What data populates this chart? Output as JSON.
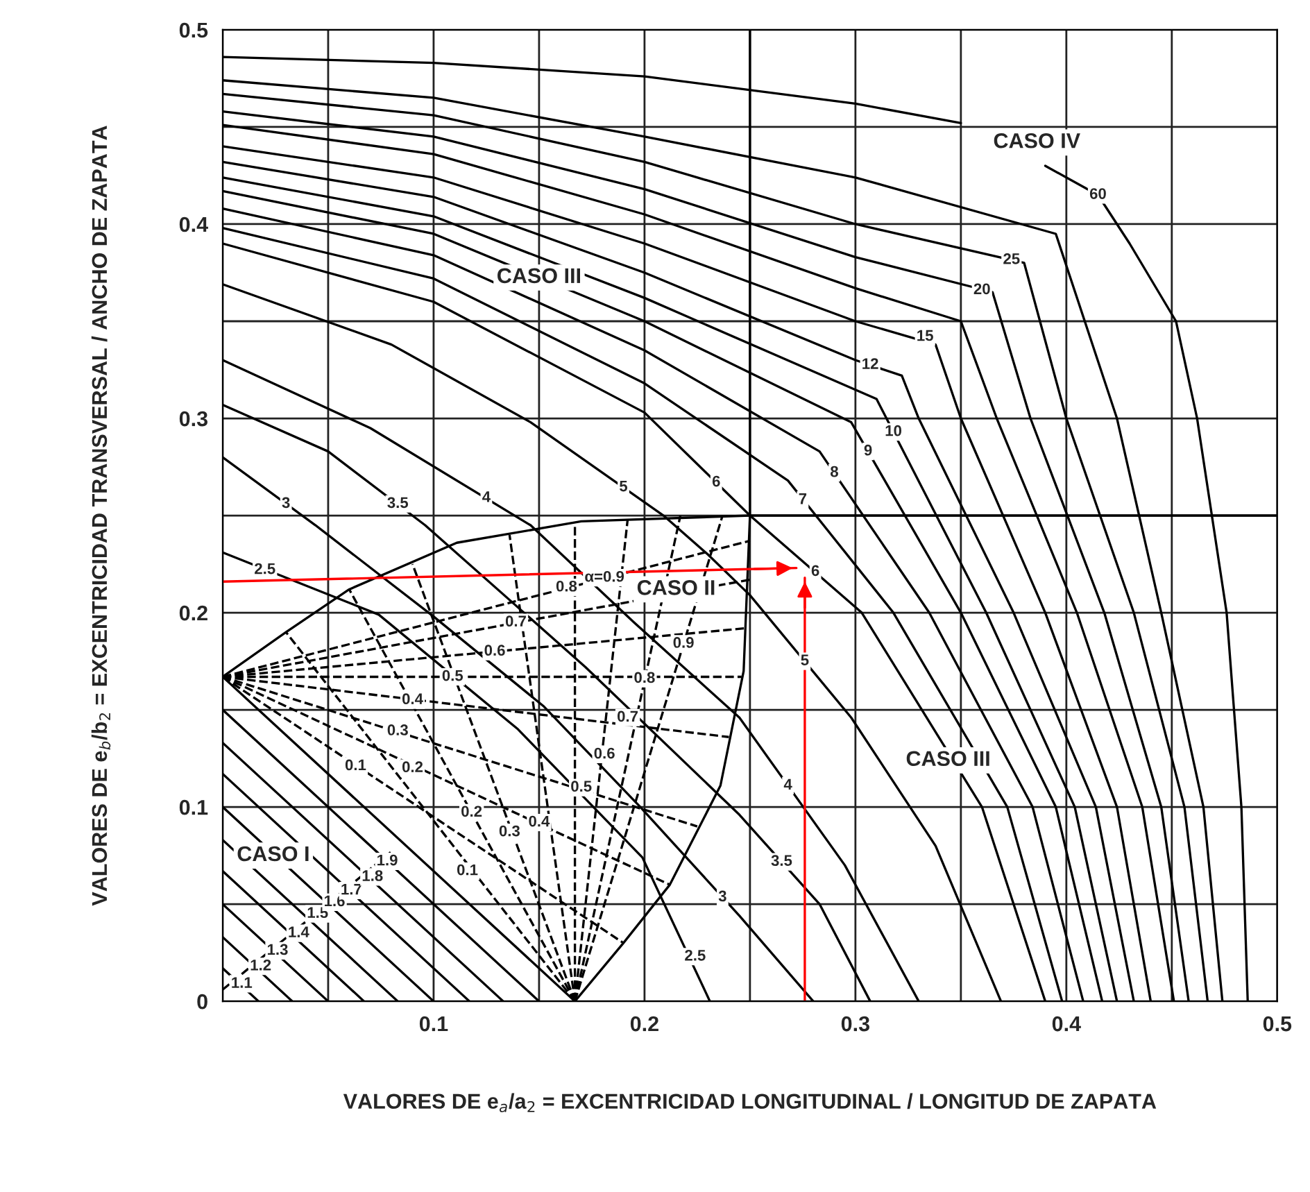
{
  "chart_data": {
    "type": "line",
    "xlabel": "VALORES DE e$_{a}$/a$_{2}$ = EXCENTRICIDAD LONGITUDINAL / LONGITUD DE ZAPATA",
    "ylabel": "VALORES DE e$_{b}$/b$_{2}$ = EXCENTRICIDAD TRANSVERSAL / ANCHO DE ZAPATA",
    "xlim": [
      0,
      0.5
    ],
    "ylim": [
      0,
      0.5
    ],
    "xticks": [
      {
        "value": 0,
        "label": null
      },
      {
        "value": 0.05,
        "label": null
      },
      0.1,
      {
        "value": 0.15,
        "label": null
      },
      0.2,
      {
        "value": 0.25,
        "label": null
      },
      0.3,
      {
        "value": 0.35,
        "label": null
      },
      0.4,
      {
        "value": 0.45,
        "label": null
      },
      0.5
    ],
    "yticks": [
      0,
      {
        "value": 0.05,
        "label": null
      },
      0.1,
      {
        "value": 0.15,
        "label": null
      },
      0.2,
      {
        "value": 0.25,
        "label": null
      },
      0.3,
      {
        "value": 0.35,
        "label": null
      },
      0.4,
      {
        "value": 0.45,
        "label": null
      },
      0.5
    ],
    "grid": true,
    "legend": false,
    "marker": "none",
    "line_style": "solid",
    "series": [
      {
        "color": "#000000",
        "x": [
          0,
          0.074,
          0.14,
          0.199,
          0.231
        ],
        "values": [
          0.231,
          0.199,
          0.14,
          0.074,
          0
        ]
      },
      {
        "color": "#000000",
        "x": [
          0,
          0.044,
          0.1,
          0.152,
          0.198,
          0.245,
          0.28
        ],
        "values": [
          0.28,
          0.245,
          0.198,
          0.152,
          0.1,
          0.044,
          0
        ]
      },
      {
        "color": "#000000",
        "x": [
          0,
          0.05,
          0.096,
          0.172,
          0.245,
          0.283,
          0.307
        ],
        "values": [
          0.307,
          0.283,
          0.245,
          0.172,
          0.096,
          0.05,
          0
        ]
      },
      {
        "color": "#000000",
        "x": [
          0,
          0.07,
          0.146,
          0.195,
          0.245,
          0.295,
          0.33
        ],
        "values": [
          0.33,
          0.295,
          0.245,
          0.195,
          0.146,
          0.07,
          0
        ]
      },
      {
        "color": "#000000",
        "x": [
          0,
          0.08,
          0.146,
          0.209,
          0.23,
          0.25,
          0.298,
          0.338,
          0.369
        ],
        "values": [
          0.369,
          0.338,
          0.298,
          0.25,
          0.23,
          0.209,
          0.146,
          0.08,
          0
        ]
      },
      {
        "color": "#000000",
        "x": [
          0,
          0.1,
          0.2,
          0.25,
          0.303,
          0.36,
          0.39
        ],
        "values": [
          0.39,
          0.36,
          0.303,
          0.25,
          0.2,
          0.1,
          0
        ]
      },
      {
        "color": "#000000",
        "x": [
          0,
          0.1,
          0.2,
          0.268,
          0.318,
          0.372,
          0.398
        ],
        "values": [
          0.398,
          0.372,
          0.318,
          0.268,
          0.2,
          0.1,
          0
        ]
      },
      {
        "color": "#000000",
        "x": [
          0,
          0.1,
          0.2,
          0.283,
          0.335,
          0.384,
          0.408
        ],
        "values": [
          0.408,
          0.384,
          0.335,
          0.283,
          0.2,
          0.1,
          0
        ]
      },
      {
        "color": "#000000",
        "x": [
          0,
          0.1,
          0.2,
          0.298,
          0.35,
          0.395,
          0.417
        ],
        "values": [
          0.417,
          0.395,
          0.35,
          0.298,
          0.2,
          0.1,
          0
        ]
      },
      {
        "color": "#000000",
        "x": [
          0,
          0.1,
          0.2,
          0.31,
          0.362,
          0.404,
          0.424
        ],
        "values": [
          0.424,
          0.404,
          0.362,
          0.31,
          0.2,
          0.1,
          0
        ]
      },
      {
        "color": "#000000",
        "x": [
          0,
          0.1,
          0.2,
          0.3,
          0.322,
          0.33,
          0.375,
          0.414,
          0.432
        ],
        "values": [
          0.432,
          0.414,
          0.375,
          0.33,
          0.322,
          0.3,
          0.2,
          0.1,
          0
        ]
      },
      {
        "color": "#000000",
        "x": [
          0,
          0.1,
          0.2,
          0.3,
          0.338,
          0.35,
          0.39,
          0.424,
          0.44
        ],
        "values": [
          0.44,
          0.424,
          0.39,
          0.35,
          0.338,
          0.3,
          0.2,
          0.1,
          0
        ]
      },
      {
        "color": "#000000",
        "x": [
          0,
          0.1,
          0.2,
          0.3,
          0.35,
          0.367,
          0.405,
          0.436,
          0.451
        ],
        "values": [
          0.451,
          0.436,
          0.405,
          0.367,
          0.35,
          0.3,
          0.2,
          0.1,
          0
        ]
      },
      {
        "color": "#000000",
        "x": [
          0,
          0.1,
          0.2,
          0.3,
          0.365,
          0.383,
          0.418,
          0.445,
          0.458
        ],
        "values": [
          0.458,
          0.445,
          0.418,
          0.383,
          0.365,
          0.3,
          0.2,
          0.1,
          0
        ]
      },
      {
        "color": "#000000",
        "x": [
          0,
          0.1,
          0.2,
          0.3,
          0.38,
          0.4,
          0.432,
          0.456,
          0.467
        ],
        "values": [
          0.467,
          0.456,
          0.432,
          0.4,
          0.38,
          0.3,
          0.2,
          0.1,
          0
        ]
      },
      {
        "color": "#000000",
        "x": [
          0,
          0.1,
          0.2,
          0.3,
          0.395,
          0.424,
          0.445,
          0.465,
          0.474
        ],
        "values": [
          0.474,
          0.465,
          0.445,
          0.424,
          0.395,
          0.3,
          0.2,
          0.1,
          0
        ]
      },
      {
        "color": "#000000",
        "x": [
          0,
          0.1,
          0.2,
          0.3,
          0.35,
          0.372,
          0.39,
          0.415,
          0.43,
          0.452,
          0.462,
          0.476,
          0.483,
          0.486
        ],
        "values": [
          0.486,
          0.483,
          0.476,
          0.462,
          0.452,
          null,
          0.43,
          0.415,
          0.39,
          0.35,
          0.3,
          0.2,
          0.1,
          0
        ]
      },
      {
        "color": "#000000",
        "x": [
          0,
          0.03,
          0.06,
          0.111,
          0.17,
          0.25,
          0.5
        ],
        "values": [
          0.167,
          0.19,
          0.212,
          0.236,
          0.247,
          0.25,
          0.25
        ]
      },
      {
        "color": "#000000",
        "x": [
          0.167,
          0.19,
          0.212,
          0.236,
          0.247,
          0.25,
          0.25
        ],
        "values": [
          0,
          0.03,
          0.06,
          0.111,
          0.17,
          0.25,
          0.5
        ]
      },
      {
        "color": "#000000",
        "x": [
          0,
          0.167
        ],
        "values": [
          0.167,
          0
        ]
      },
      {
        "color": "#000000",
        "x": [
          0,
          0.017
        ],
        "values": [
          0.017,
          0
        ]
      },
      {
        "color": "#000000",
        "x": [
          0,
          0.033
        ],
        "values": [
          0.033,
          0
        ]
      },
      {
        "color": "#000000",
        "x": [
          0,
          0.05
        ],
        "values": [
          0.05,
          0
        ]
      },
      {
        "color": "#000000",
        "x": [
          0,
          0.067
        ],
        "values": [
          0.067,
          0
        ]
      },
      {
        "color": "#000000",
        "x": [
          0,
          0.083
        ],
        "values": [
          0.083,
          0
        ]
      },
      {
        "color": "#000000",
        "x": [
          0,
          0.1
        ],
        "values": [
          0.1,
          0
        ]
      },
      {
        "color": "#000000",
        "x": [
          0,
          0.117
        ],
        "values": [
          0.117,
          0
        ]
      },
      {
        "color": "#000000",
        "x": [
          0,
          0.133
        ],
        "values": [
          0.133,
          0
        ]
      },
      {
        "color": "#000000",
        "x": [
          0,
          0.15
        ],
        "values": [
          0.15,
          0
        ]
      },
      {
        "color": "#000000",
        "line_style": "dashed",
        "x": [
          0,
          0.08
        ],
        "values": [
          0.006,
          0.077
        ]
      },
      {
        "color": "#000000",
        "line_style": "dashed",
        "x": [
          0,
          0.19
        ],
        "values": [
          0.167,
          0.03
        ]
      },
      {
        "color": "#000000",
        "line_style": "dashed",
        "x": [
          0,
          0.212
        ],
        "values": [
          0.167,
          0.06
        ]
      },
      {
        "color": "#000000",
        "line_style": "dashed",
        "x": [
          0,
          0.225
        ],
        "values": [
          0.167,
          0.09
        ]
      },
      {
        "color": "#000000",
        "line_style": "dashed",
        "x": [
          0,
          0.24
        ],
        "values": [
          0.167,
          0.136
        ]
      },
      {
        "color": "#000000",
        "line_style": "dashed",
        "x": [
          0,
          0.246
        ],
        "values": [
          0.167,
          0.167
        ]
      },
      {
        "color": "#000000",
        "line_style": "dashed",
        "x": [
          0,
          0.248
        ],
        "values": [
          0.167,
          0.192
        ]
      },
      {
        "color": "#000000",
        "line_style": "dashed",
        "x": [
          0,
          0.25
        ],
        "values": [
          0.167,
          0.217
        ]
      },
      {
        "color": "#000000",
        "line_style": "dashed",
        "x": [
          0,
          0.25
        ],
        "values": [
          0.167,
          0.237
        ]
      },
      {
        "color": "#000000",
        "line_style": "dashed",
        "x": [
          0.167,
          0.03
        ],
        "values": [
          0,
          0.19
        ]
      },
      {
        "color": "#000000",
        "line_style": "dashed",
        "x": [
          0.167,
          0.06
        ],
        "values": [
          0,
          0.212
        ]
      },
      {
        "color": "#000000",
        "line_style": "dashed",
        "x": [
          0.167,
          0.09
        ],
        "values": [
          0,
          0.225
        ]
      },
      {
        "color": "#000000",
        "line_style": "dashed",
        "x": [
          0.167,
          0.136
        ],
        "values": [
          0,
          0.24
        ]
      },
      {
        "color": "#000000",
        "line_style": "dashed",
        "x": [
          0.167,
          0.167
        ],
        "values": [
          0,
          0.246
        ]
      },
      {
        "color": "#000000",
        "line_style": "dashed",
        "x": [
          0.167,
          0.192
        ],
        "values": [
          0,
          0.248
        ]
      },
      {
        "color": "#000000",
        "line_style": "dashed",
        "x": [
          0.167,
          0.217
        ],
        "values": [
          0,
          0.25
        ]
      },
      {
        "color": "#000000",
        "line_style": "dashed",
        "x": [
          0.167,
          0.237
        ],
        "values": [
          0,
          0.25
        ]
      },
      {
        "color": "#ff0000",
        "x": [
          0,
          0.272
        ],
        "values": [
          0.216,
          0.223
        ]
      },
      {
        "color": "#ff0000",
        "x": [
          0.276,
          0.276
        ],
        "values": [
          0,
          0.218
        ]
      }
    ],
    "annotations": [
      "CASO III",
      "CASO IV",
      "CASO II",
      "CASO III",
      "CASO I",
      {
        "text": "2.5",
        "x": 0.02,
        "y": 0.222
      },
      {
        "text": "3",
        "x": 0.03,
        "y": 0.256
      },
      {
        "text": "3.5",
        "x": 0.083,
        "y": 0.256
      },
      {
        "text": "4",
        "x": 0.125,
        "y": 0.259
      },
      {
        "text": "5",
        "x": 0.19,
        "y": 0.2645
      },
      {
        "text": "6",
        "x": 0.234,
        "y": 0.267
      },
      {
        "text": "6",
        "x": 0.281,
        "y": 0.221
      },
      {
        "text": "5",
        "x": 0.276,
        "y": 0.175
      },
      {
        "text": "4",
        "x": 0.268,
        "y": 0.111
      },
      {
        "text": "3.5",
        "x": 0.265,
        "y": 0.0718
      },
      {
        "text": "3",
        "x": 0.237,
        "y": 0.0535
      },
      {
        "text": "2.5",
        "x": 0.224,
        "y": 0.023
      },
      {
        "text": "7",
        "x": 0.275,
        "y": 0.258
      },
      {
        "text": "8",
        "x": 0.29,
        "y": 0.272
      },
      {
        "text": "9",
        "x": 0.306,
        "y": 0.283
      },
      {
        "text": "10",
        "x": 0.318,
        "y": 0.293
      },
      {
        "text": "12",
        "x": 0.307,
        "y": 0.3275
      },
      {
        "text": "15",
        "x": 0.333,
        "y": 0.342
      },
      {
        "text": "20",
        "x": 0.36,
        "y": 0.366
      },
      {
        "text": "25",
        "x": 0.374,
        "y": 0.3815
      },
      {
        "text": "60",
        "x": 0.415,
        "y": 0.415
      },
      {
        "text": "1.1",
        "x": 0.009,
        "y": 0.009
      },
      {
        "text": "1.2",
        "x": 0.018,
        "y": 0.018
      },
      {
        "text": "1.3",
        "x": 0.026,
        "y": 0.026
      },
      {
        "text": "1.4",
        "x": 0.036,
        "y": 0.035
      },
      {
        "text": "1.5",
        "x": 0.045,
        "y": 0.045
      },
      {
        "text": "1.6",
        "x": 0.053,
        "y": 0.051
      },
      {
        "text": "1.7",
        "x": 0.061,
        "y": 0.057
      },
      {
        "text": "1.8",
        "x": 0.071,
        "y": 0.064
      },
      {
        "text": "1.9",
        "x": 0.078,
        "y": 0.072
      },
      {
        "text": "0.1",
        "x": 0.063,
        "y": 0.121
      },
      {
        "text": "0.2",
        "x": 0.09,
        "y": 0.12
      },
      {
        "text": "0.3",
        "x": 0.083,
        "y": 0.139
      },
      {
        "text": "0.4",
        "x": 0.09,
        "y": 0.155
      },
      {
        "text": "0.5",
        "x": 0.109,
        "y": 0.167
      },
      {
        "text": "0.6",
        "x": 0.129,
        "y": 0.18
      },
      {
        "text": "0.7",
        "x": 0.139,
        "y": 0.195
      },
      {
        "text": "0.8",
        "x": 0.163,
        "y": 0.213
      },
      {
        "text": "α=0.9",
        "x": 0.181,
        "y": 0.218
      },
      {
        "text": "0.1",
        "x": 0.116,
        "y": 0.067
      },
      {
        "text": "0.2",
        "x": 0.118,
        "y": 0.0971
      },
      {
        "text": "0.3",
        "x": 0.136,
        "y": 0.087
      },
      {
        "text": "0.4",
        "x": 0.15,
        "y": 0.092
      },
      {
        "text": "0.5",
        "x": 0.17,
        "y": 0.11
      },
      {
        "text": "0.6",
        "x": 0.181,
        "y": 0.127
      },
      {
        "text": "0.7",
        "x": 0.192,
        "y": 0.146
      },
      {
        "text": "0.8",
        "x": 0.2,
        "y": 0.166
      },
      {
        "text": "0.9",
        "x": 0.2185,
        "y": 0.184
      }
    ]
  }
}
